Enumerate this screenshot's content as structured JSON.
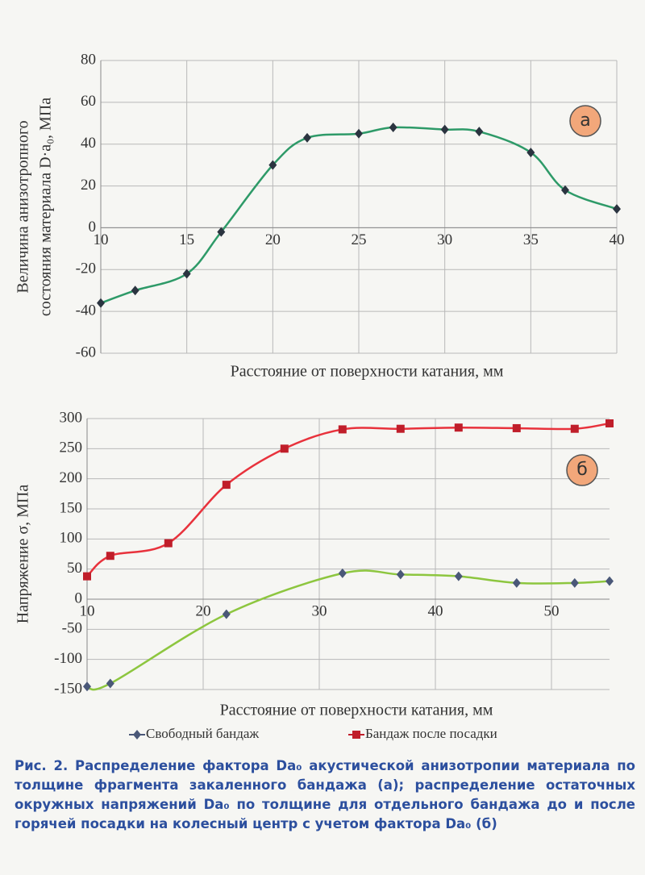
{
  "chart_data": [
    {
      "type": "line",
      "annotation": "а",
      "ylabel": [
        "Величина анизотропного",
        "состояния материала D·a₀, МПа"
      ],
      "xlabel": "Расстояние от поверхности катания, мм",
      "x": [
        10,
        12,
        15,
        17,
        20,
        22,
        25,
        27,
        30,
        32,
        35,
        37,
        40
      ],
      "series": [
        {
          "color": "#2e9a68",
          "marker": "diamond",
          "marker_color": "#2b3440",
          "values": [
            -36,
            -30,
            -22,
            -2,
            30,
            43,
            45,
            48,
            47,
            46,
            36,
            18,
            9
          ]
        }
      ],
      "xlim": [
        10,
        40
      ],
      "xticks": [
        10,
        15,
        20,
        25,
        30,
        35,
        40
      ],
      "ylim": [
        -60,
        80
      ],
      "yticks": [
        -60,
        -40,
        -20,
        0,
        20,
        40,
        60,
        80
      ],
      "grid": true
    },
    {
      "type": "line",
      "annotation": "б",
      "ylabel": [
        "Напряжение σ, МПа"
      ],
      "xlabel": "Расстояние от поверхности катания, мм",
      "x": [
        10,
        12,
        17,
        22,
        27,
        32,
        37,
        42,
        47,
        52,
        55
      ],
      "series": [
        {
          "name": "Свободный бандаж",
          "color": "#8dc63f",
          "marker": "diamond",
          "marker_color": "#4a5878",
          "values": [
            -145,
            -140,
            null,
            -25,
            null,
            43,
            41,
            38,
            27,
            27,
            30
          ]
        },
        {
          "name": "Бандаж после посадки",
          "color": "#e8323c",
          "marker": "square",
          "marker_color": "#c01e2a",
          "values": [
            38,
            72,
            93,
            190,
            250,
            282,
            283,
            285,
            284,
            283,
            292
          ]
        }
      ],
      "xlim": [
        10,
        55
      ],
      "xticks": [
        10,
        20,
        30,
        40,
        50
      ],
      "ylim": [
        -150,
        300
      ],
      "yticks": [
        -150,
        -100,
        -50,
        0,
        50,
        100,
        150,
        200,
        250,
        300
      ],
      "grid": true
    }
  ],
  "caption": "Рис. 2. Распределение фактора Da₀ акустической анизотропии материала по толщине фрагмента закаленного бандажа (а); распределение остаточных окружных напряжений Da₀ по толщине для отдельного бандажа до и после горячей посадки на колесный центр с учетом фактора Da₀ (б)"
}
